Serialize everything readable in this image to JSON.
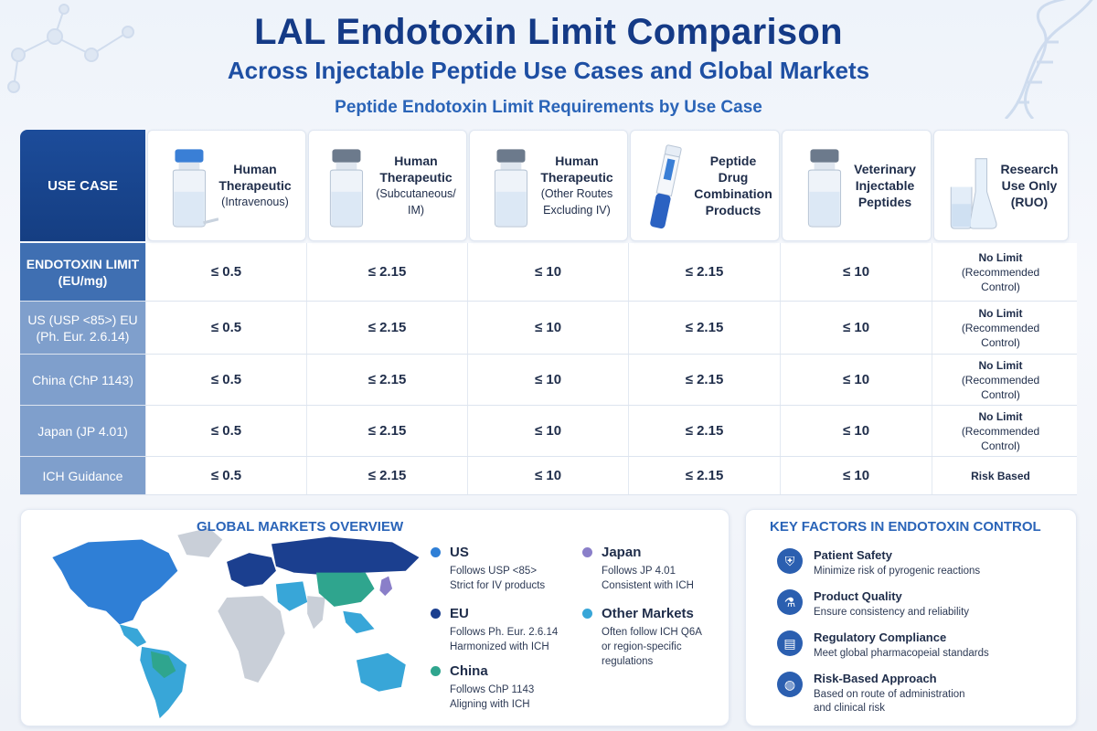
{
  "header": {
    "title": "LAL Endotoxin Limit Comparison",
    "subtitle": "Across Injectable Peptide Use Cases and Global Markets",
    "section_title": "Peptide Endotoxin Limit Requirements by Use Case"
  },
  "table": {
    "use_case_label": "USE CASE",
    "columns": [
      {
        "lines": [
          "Human",
          "Therapeutic"
        ],
        "small": [
          "(Intravenous)"
        ],
        "icon": "iv-vial-icon"
      },
      {
        "lines": [
          "Human",
          "Therapeutic"
        ],
        "small": [
          "(Subcutaneous/",
          "IM)"
        ],
        "icon": "vial-icon"
      },
      {
        "lines": [
          "Human",
          "Therapeutic"
        ],
        "small": [
          "(Other Routes",
          "Excluding IV)"
        ],
        "icon": "vial-icon"
      },
      {
        "lines": [
          "Peptide",
          "Drug",
          "Combination",
          "Products"
        ],
        "small": [],
        "icon": "pen-injector-icon"
      },
      {
        "lines": [
          "Veterinary",
          "Injectable",
          "Peptides"
        ],
        "small": [],
        "icon": "vial-icon"
      },
      {
        "lines": [
          "Research",
          "Use Only",
          "(RUO)"
        ],
        "small": [],
        "icon": "flask-icon"
      }
    ],
    "rows": [
      {
        "label": "ENDOTOXIN LIMIT (EU/mg)",
        "values": [
          "≤ 0.5",
          "≤ 2.15",
          "≤ 10",
          "≤ 2.15",
          "≤ 10"
        ],
        "last": [
          "No Limit",
          "(Recommended",
          "Control)"
        ]
      },
      {
        "label": "US (USP <85>) EU (Ph. Eur. 2.6.14)",
        "values": [
          "≤ 0.5",
          "≤ 2.15",
          "≤ 10",
          "≤ 2.15",
          "≤ 10"
        ],
        "last": [
          "No Limit",
          "(Recommended",
          "Control)"
        ]
      },
      {
        "label": "China (ChP 1143)",
        "values": [
          "≤ 0.5",
          "≤ 2.15",
          "≤ 10",
          "≤ 2.15",
          "≤ 10"
        ],
        "last": [
          "No Limit",
          "(Recommended",
          "Control)"
        ]
      },
      {
        "label": "Japan (JP 4.01)",
        "values": [
          "≤ 0.5",
          "≤ 2.15",
          "≤ 10",
          "≤ 2.15",
          "≤ 10"
        ],
        "last": [
          "No Limit",
          "(Recommended",
          "Control)"
        ]
      },
      {
        "label": "ICH Guidance",
        "values": [
          "≤ 0.5",
          "≤ 2.15",
          "≤ 10",
          "≤ 2.15",
          "≤ 10"
        ],
        "last": [
          "Risk Based"
        ]
      }
    ]
  },
  "markets": {
    "title": "GLOBAL MARKETS OVERVIEW",
    "items": [
      {
        "name": "US",
        "desc": [
          "Follows USP <85>",
          "Strict for IV products"
        ],
        "color": "#2f7fd6"
      },
      {
        "name": "EU",
        "desc": [
          "Follows Ph. Eur. 2.6.14",
          "Harmonized with ICH"
        ],
        "color": "#1b3f8f"
      },
      {
        "name": "China",
        "desc": [
          "Follows ChP 1143",
          "Aligning with ICH"
        ],
        "color": "#2fa58e"
      },
      {
        "name": "Japan",
        "desc": [
          "Follows JP 4.01",
          "Consistent with ICH"
        ],
        "color": "#8a7fc9"
      },
      {
        "name": "Other Markets",
        "desc": [
          "Often follow ICH Q6A",
          "or region-specific",
          "regulations"
        ],
        "color": "#38a6d8"
      }
    ]
  },
  "factors": {
    "title": "KEY FACTORS IN ENDOTOXIN CONTROL",
    "items": [
      {
        "title": "Patient Safety",
        "desc": [
          "Minimize risk of pyrogenic reactions"
        ],
        "icon": "shield-icon"
      },
      {
        "title": "Product Quality",
        "desc": [
          "Ensure consistency and reliability"
        ],
        "icon": "test-tube-icon"
      },
      {
        "title": "Regulatory Compliance",
        "desc": [
          "Meet global pharmacopeial standards"
        ],
        "icon": "document-icon"
      },
      {
        "title": "Risk-Based Approach",
        "desc": [
          "Based on route of administration",
          "and clinical risk"
        ],
        "icon": "globe-icon"
      }
    ]
  }
}
